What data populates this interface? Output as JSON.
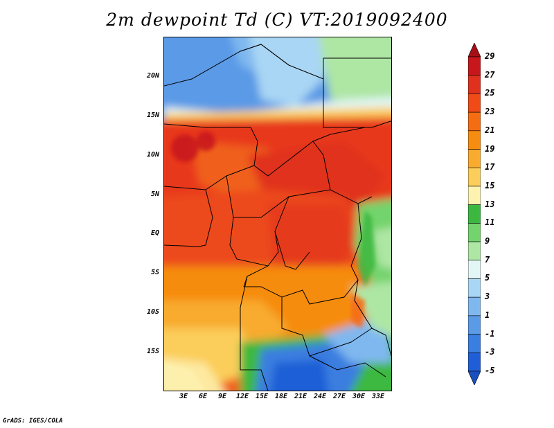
{
  "title": "2m dewpoint Td (C) VT:2019092400",
  "credit": "GrADS: IGES/COLA",
  "lat_labels": [
    "20N",
    "15N",
    "10N",
    "5N",
    "EQ",
    "5S",
    "10S",
    "15S"
  ],
  "lat_values": [
    20,
    15,
    10,
    5,
    0,
    -5,
    -10,
    -15
  ],
  "lon_labels": [
    "3E",
    "6E",
    "9E",
    "12E",
    "15E",
    "18E",
    "21E",
    "24E",
    "27E",
    "30E",
    "33E"
  ],
  "lon_values": [
    3,
    6,
    9,
    12,
    15,
    18,
    21,
    24,
    27,
    30,
    33
  ],
  "colorbar": {
    "levels": [
      "29",
      "27",
      "25",
      "23",
      "21",
      "19",
      "17",
      "15",
      "13",
      "11",
      "9",
      "7",
      "5",
      "3",
      "1",
      "-1",
      "-3",
      "-5"
    ],
    "colors": [
      "#a50f15",
      "#c8171c",
      "#e0301e",
      "#f04a16",
      "#f46d12",
      "#f68c10",
      "#f8ab2e",
      "#fbcd5a",
      "#fdf2b0",
      "#3cb841",
      "#73d36c",
      "#aee6a4",
      "#e2f6f6",
      "#a9d6f4",
      "#7fb8ef",
      "#5a9ae6",
      "#3a7ee0",
      "#1f5ed6",
      "#1a4fc0"
    ]
  },
  "map": {
    "region": "Central Africa",
    "lat_range": [
      -19,
      24.5
    ],
    "lon_range": [
      0.5,
      34.5
    ]
  }
}
